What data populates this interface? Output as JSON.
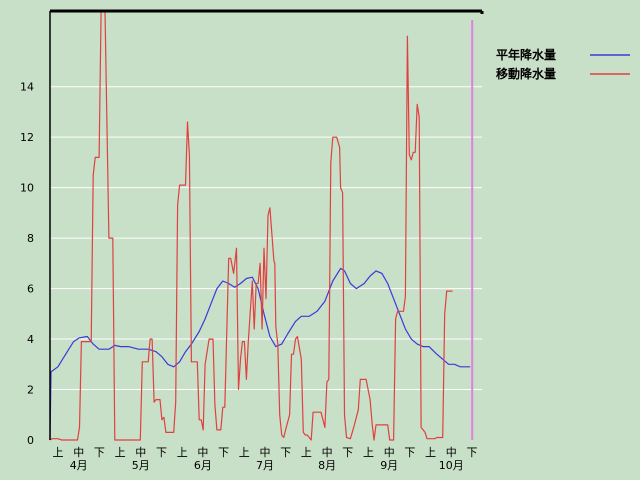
{
  "chart_data": {
    "type": "line",
    "title": "",
    "xlabel": "",
    "ylabel": "",
    "ylim": [
      0,
      17
    ],
    "yticks": [
      0,
      2,
      4,
      6,
      8,
      10,
      12,
      14
    ],
    "xlim": [
      0,
      22
    ],
    "x_tick_labels": [
      "上",
      "中",
      "下",
      "上",
      "中",
      "下",
      "上",
      "中",
      "下",
      "上",
      "中",
      "下",
      "上",
      "中",
      "下",
      "上",
      "中",
      "下",
      "上",
      "中",
      "下"
    ],
    "months": [
      "4月",
      "5月",
      "6月",
      "7月",
      "8月",
      "9月",
      "10月"
    ],
    "grid": true,
    "legend_placement": "top-right",
    "marker_x": 21.5,
    "colors": {
      "background": "#c8dfc8",
      "grid": "#ffffff",
      "frame": "#000000",
      "marker": "#e080e0"
    },
    "series": [
      {
        "name": "平年降水量",
        "color": "#3a3ad8",
        "points": [
          [
            0,
            0
          ],
          [
            0.05,
            2.7
          ],
          [
            0.4,
            2.9
          ],
          [
            0.8,
            3.4
          ],
          [
            1.2,
            3.9
          ],
          [
            1.5,
            4.05
          ],
          [
            1.9,
            4.1
          ],
          [
            2.2,
            3.8
          ],
          [
            2.5,
            3.6
          ],
          [
            3.0,
            3.6
          ],
          [
            3.3,
            3.75
          ],
          [
            3.6,
            3.7
          ],
          [
            4.0,
            3.7
          ],
          [
            4.5,
            3.6
          ],
          [
            5.0,
            3.6
          ],
          [
            5.4,
            3.5
          ],
          [
            5.7,
            3.3
          ],
          [
            6.0,
            3.0
          ],
          [
            6.3,
            2.9
          ],
          [
            6.6,
            3.1
          ],
          [
            6.9,
            3.5
          ],
          [
            7.2,
            3.8
          ],
          [
            7.6,
            4.3
          ],
          [
            7.9,
            4.8
          ],
          [
            8.2,
            5.4
          ],
          [
            8.5,
            6.0
          ],
          [
            8.8,
            6.3
          ],
          [
            9.1,
            6.2
          ],
          [
            9.4,
            6.05
          ],
          [
            9.7,
            6.2
          ],
          [
            10.0,
            6.4
          ],
          [
            10.3,
            6.45
          ],
          [
            10.6,
            6.0
          ],
          [
            10.9,
            5.0
          ],
          [
            11.2,
            4.1
          ],
          [
            11.5,
            3.7
          ],
          [
            11.8,
            3.8
          ],
          [
            12.1,
            4.2
          ],
          [
            12.5,
            4.7
          ],
          [
            12.8,
            4.9
          ],
          [
            13.2,
            4.9
          ],
          [
            13.6,
            5.1
          ],
          [
            14.0,
            5.5
          ],
          [
            14.4,
            6.3
          ],
          [
            14.8,
            6.8
          ],
          [
            15.0,
            6.7
          ],
          [
            15.3,
            6.2
          ],
          [
            15.6,
            6.0
          ],
          [
            16.0,
            6.2
          ],
          [
            16.3,
            6.5
          ],
          [
            16.6,
            6.7
          ],
          [
            16.9,
            6.6
          ],
          [
            17.2,
            6.2
          ],
          [
            17.5,
            5.6
          ],
          [
            17.8,
            5.0
          ],
          [
            18.1,
            4.4
          ],
          [
            18.4,
            4.0
          ],
          [
            18.7,
            3.8
          ],
          [
            19.0,
            3.7
          ],
          [
            19.3,
            3.7
          ],
          [
            19.7,
            3.4
          ],
          [
            20.0,
            3.2
          ],
          [
            20.3,
            3.0
          ],
          [
            20.6,
            3.0
          ],
          [
            20.9,
            2.9
          ],
          [
            21.1,
            2.9
          ],
          [
            21.4,
            2.9
          ]
        ]
      },
      {
        "name": "移動降水量",
        "color": "#e04040",
        "points": [
          [
            0,
            0
          ],
          [
            0.1,
            0.05
          ],
          [
            0.4,
            0.05
          ],
          [
            0.6,
            0
          ],
          [
            1.4,
            0
          ],
          [
            1.5,
            0.5
          ],
          [
            1.6,
            3.9
          ],
          [
            2.1,
            3.9
          ],
          [
            2.2,
            10.5
          ],
          [
            2.3,
            11.2
          ],
          [
            2.5,
            11.2
          ],
          [
            2.6,
            17
          ],
          [
            2.8,
            17
          ],
          [
            3.0,
            8.0
          ],
          [
            3.2,
            8.0
          ],
          [
            3.3,
            0
          ],
          [
            4.6,
            0
          ],
          [
            4.7,
            3.1
          ],
          [
            5.0,
            3.1
          ],
          [
            5.1,
            4.0
          ],
          [
            5.2,
            4.0
          ],
          [
            5.3,
            1.5
          ],
          [
            5.4,
            1.6
          ],
          [
            5.6,
            1.6
          ],
          [
            5.7,
            0.8
          ],
          [
            5.8,
            0.9
          ],
          [
            5.9,
            0.3
          ],
          [
            6.3,
            0.3
          ],
          [
            6.4,
            1.5
          ],
          [
            6.5,
            9.3
          ],
          [
            6.6,
            10.1
          ],
          [
            6.9,
            10.1
          ],
          [
            7.0,
            12.6
          ],
          [
            7.1,
            11.3
          ],
          [
            7.2,
            3.1
          ],
          [
            7.5,
            3.1
          ],
          [
            7.6,
            0.8
          ],
          [
            7.7,
            0.8
          ],
          [
            7.8,
            0.4
          ],
          [
            7.9,
            3.0
          ],
          [
            8.1,
            4.0
          ],
          [
            8.3,
            4.0
          ],
          [
            8.4,
            1.4
          ],
          [
            8.5,
            0.4
          ],
          [
            8.7,
            0.4
          ],
          [
            8.8,
            1.3
          ],
          [
            8.9,
            1.3
          ],
          [
            9.1,
            7.2
          ],
          [
            9.2,
            7.2
          ],
          [
            9.35,
            6.6
          ],
          [
            9.5,
            7.6
          ],
          [
            9.6,
            2.0
          ],
          [
            9.7,
            3.2
          ],
          [
            9.8,
            3.9
          ],
          [
            9.9,
            3.9
          ],
          [
            10.0,
            2.4
          ],
          [
            10.1,
            3.9
          ],
          [
            10.3,
            6.3
          ],
          [
            10.4,
            4.4
          ],
          [
            10.5,
            6.2
          ],
          [
            10.6,
            6.2
          ],
          [
            10.7,
            7.0
          ],
          [
            10.8,
            4.4
          ],
          [
            10.9,
            7.6
          ],
          [
            11.0,
            5.6
          ],
          [
            11.1,
            8.9
          ],
          [
            11.2,
            9.2
          ],
          [
            11.4,
            7.1
          ],
          [
            11.45,
            7.0
          ],
          [
            11.5,
            4.5
          ],
          [
            11.6,
            3.8
          ],
          [
            11.7,
            1.0
          ],
          [
            11.8,
            0.2
          ],
          [
            11.9,
            0.1
          ],
          [
            12.0,
            0.4
          ],
          [
            12.2,
            1.0
          ],
          [
            12.3,
            3.4
          ],
          [
            12.4,
            3.4
          ],
          [
            12.5,
            4.0
          ],
          [
            12.6,
            4.1
          ],
          [
            12.8,
            3.2
          ],
          [
            12.9,
            0.3
          ],
          [
            13.0,
            0.2
          ],
          [
            13.1,
            0.2
          ],
          [
            13.3,
            0
          ],
          [
            13.4,
            1.1
          ],
          [
            13.8,
            1.1
          ],
          [
            14.0,
            0.5
          ],
          [
            14.1,
            2.3
          ],
          [
            14.2,
            2.4
          ],
          [
            14.3,
            11.0
          ],
          [
            14.4,
            12.0
          ],
          [
            14.6,
            12.0
          ],
          [
            14.75,
            11.6
          ],
          [
            14.8,
            10.0
          ],
          [
            14.9,
            9.8
          ],
          [
            15.0,
            1.0
          ],
          [
            15.1,
            0.1
          ],
          [
            15.3,
            0.05
          ],
          [
            15.5,
            0.6
          ],
          [
            15.7,
            1.2
          ],
          [
            15.8,
            2.4
          ],
          [
            16.1,
            2.4
          ],
          [
            16.3,
            1.6
          ],
          [
            16.4,
            0.7
          ],
          [
            16.5,
            0
          ],
          [
            16.6,
            0.6
          ],
          [
            17.2,
            0.6
          ],
          [
            17.3,
            0
          ],
          [
            17.5,
            0
          ],
          [
            17.6,
            4.8
          ],
          [
            17.7,
            5.1
          ],
          [
            18.0,
            5.1
          ],
          [
            18.1,
            5.7
          ],
          [
            18.2,
            16.0
          ],
          [
            18.3,
            11.3
          ],
          [
            18.4,
            11.1
          ],
          [
            18.5,
            11.4
          ],
          [
            18.6,
            11.4
          ],
          [
            18.7,
            13.3
          ],
          [
            18.8,
            12.8
          ],
          [
            18.9,
            0.5
          ],
          [
            19.0,
            0.4
          ],
          [
            19.1,
            0.3
          ],
          [
            19.2,
            0.05
          ],
          [
            19.6,
            0.05
          ],
          [
            19.7,
            0.1
          ],
          [
            20.0,
            0.1
          ],
          [
            20.1,
            5.0
          ],
          [
            20.2,
            5.9
          ],
          [
            20.5,
            5.9
          ]
        ]
      }
    ]
  }
}
